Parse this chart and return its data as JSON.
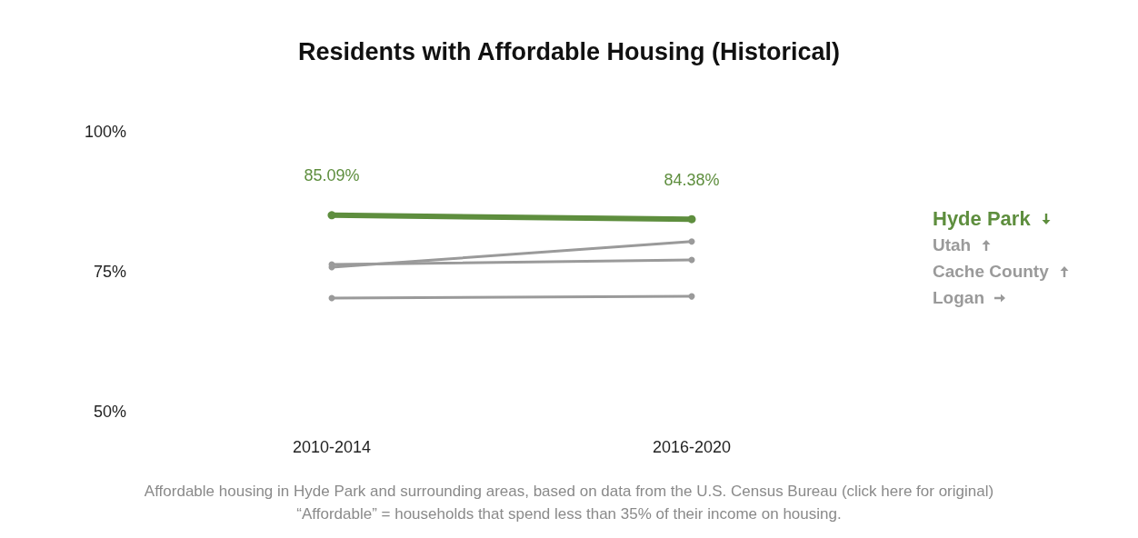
{
  "chart_data": {
    "type": "line",
    "title": "Residents with Affordable Housing (Historical)",
    "categories": [
      "2010-2014",
      "2016-2020"
    ],
    "series": [
      {
        "name": "Hyde Park",
        "color": "#5e8e3e",
        "values": [
          85.09,
          84.38
        ],
        "value_labels": [
          "85.09%",
          "84.38%"
        ]
      },
      {
        "name": "Utah",
        "color": "#9a9a9a",
        "values": [
          75.8,
          80.4
        ]
      },
      {
        "name": "Cache County",
        "color": "#9a9a9a",
        "values": [
          76.3,
          77.1
        ]
      },
      {
        "name": "Logan",
        "color": "#9a9a9a",
        "values": [
          70.3,
          70.6
        ]
      }
    ],
    "ylim": [
      50,
      100
    ],
    "yticks": [
      {
        "value": 50,
        "label": "50%"
      },
      {
        "value": 75,
        "label": "75%"
      },
      {
        "value": 100,
        "label": "100%"
      }
    ],
    "grid": false,
    "legend": "right",
    "marker": "circle",
    "line_style": "solid",
    "annotations": [
      "Affordable housing in Hyde Park and surrounding areas, based on data from the U.S. Census Bureau (click here for original)",
      "“Affordable” = households that spend less than 35% of their income on housing."
    ]
  }
}
